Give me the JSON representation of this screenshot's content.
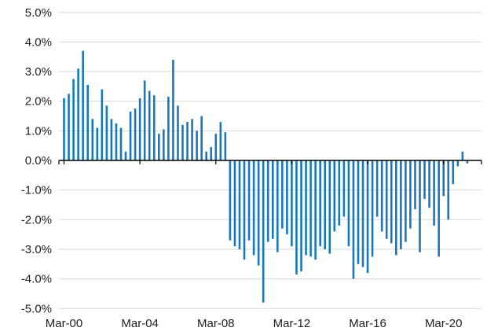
{
  "chart_data": {
    "type": "bar",
    "title": "",
    "xlabel": "",
    "ylabel": "",
    "ylim": [
      -5,
      5
    ],
    "y_tick_step": 1,
    "y_tick_labels": [
      "5.0%",
      "4.0%",
      "3.0%",
      "2.0%",
      "1.0%",
      "0.0%",
      "-1.0%",
      "-2.0%",
      "-3.0%",
      "-4.0%",
      "-5.0%"
    ],
    "x_tick_labels": [
      "Mar-00",
      "Mar-04",
      "Mar-08",
      "Mar-12",
      "Mar-16",
      "Mar-20"
    ],
    "x_tick_every": 16,
    "grid": true,
    "legend": "none",
    "bar_color": "#1878BE",
    "gridline_color": "#D9D9D9",
    "axis_color": "#000000",
    "text_color": "#212121",
    "background_color": "#FFFFFF",
    "categories": [
      "Mar-00",
      "Jun-00",
      "Sep-00",
      "Dec-00",
      "Mar-01",
      "Jun-01",
      "Sep-01",
      "Dec-01",
      "Mar-02",
      "Jun-02",
      "Sep-02",
      "Dec-02",
      "Mar-03",
      "Jun-03",
      "Sep-03",
      "Dec-03",
      "Mar-04",
      "Jun-04",
      "Sep-04",
      "Dec-04",
      "Mar-05",
      "Jun-05",
      "Sep-05",
      "Dec-05",
      "Mar-06",
      "Jun-06",
      "Sep-06",
      "Dec-06",
      "Mar-07",
      "Jun-07",
      "Sep-07",
      "Dec-07",
      "Mar-08",
      "Jun-08",
      "Sep-08",
      "Dec-08",
      "Mar-09",
      "Jun-09",
      "Sep-09",
      "Dec-09",
      "Mar-10",
      "Jun-10",
      "Sep-10",
      "Dec-10",
      "Mar-11",
      "Jun-11",
      "Sep-11",
      "Dec-11",
      "Mar-12",
      "Jun-12",
      "Sep-12",
      "Dec-12",
      "Mar-13",
      "Jun-13",
      "Sep-13",
      "Dec-13",
      "Mar-14",
      "Jun-14",
      "Sep-14",
      "Dec-14",
      "Mar-15",
      "Jun-15",
      "Sep-15",
      "Dec-15",
      "Mar-16",
      "Jun-16",
      "Sep-16",
      "Dec-16",
      "Mar-17",
      "Jun-17",
      "Sep-17",
      "Dec-17",
      "Mar-18",
      "Jun-18",
      "Sep-18",
      "Dec-18",
      "Mar-19",
      "Jun-19",
      "Sep-19",
      "Dec-19",
      "Mar-20",
      "Jun-20",
      "Sep-20",
      "Dec-20",
      "Mar-21",
      "Jun-21"
    ],
    "values": [
      2.1,
      2.25,
      2.75,
      3.1,
      3.7,
      2.55,
      1.4,
      1.1,
      2.4,
      1.85,
      1.4,
      1.25,
      1.1,
      0.3,
      1.65,
      1.75,
      2.1,
      2.7,
      2.35,
      2.2,
      0.9,
      1.05,
      2.15,
      3.4,
      1.85,
      1.2,
      1.3,
      1.4,
      1.0,
      1.5,
      0.3,
      0.45,
      0.9,
      1.3,
      0.95,
      -2.7,
      -2.9,
      -3.0,
      -3.35,
      -2.7,
      -3.2,
      -3.55,
      -4.8,
      -2.75,
      -2.65,
      -3.1,
      -2.3,
      -2.5,
      -2.9,
      -3.85,
      -3.75,
      -3.2,
      -3.25,
      -3.35,
      -2.9,
      -3.0,
      -3.15,
      -2.4,
      -2.2,
      -1.9,
      -2.9,
      -4.0,
      -3.5,
      -3.6,
      -3.8,
      -3.25,
      -1.9,
      -2.4,
      -2.65,
      -2.8,
      -3.2,
      -3.0,
      -2.75,
      -2.3,
      -1.65,
      -3.1,
      -1.3,
      -1.6,
      -2.2,
      -3.25,
      -1.2,
      -2.0,
      -0.8,
      -0.2,
      0.3,
      -0.1
    ]
  }
}
